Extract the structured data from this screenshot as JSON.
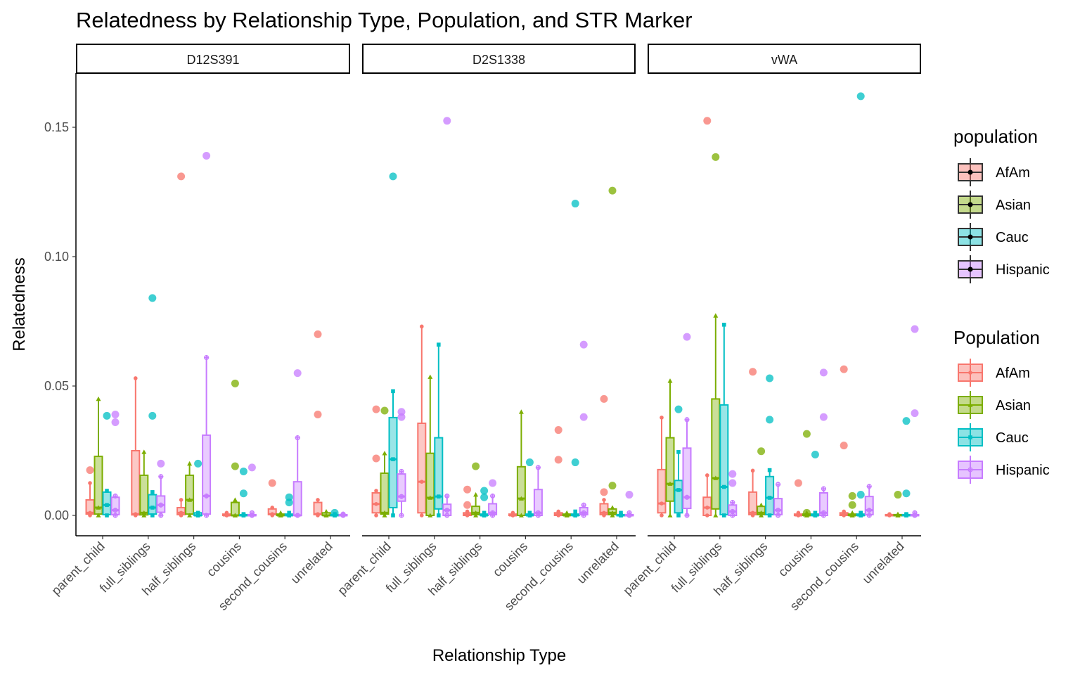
{
  "chart_data": {
    "type": "boxplot",
    "title": "Relatedness by Relationship Type, Population, and STR Marker",
    "xlabel": "Relationship Type",
    "ylabel": "Relatedness",
    "ylim": [
      -0.008,
      0.17
    ],
    "yticks": [
      0,
      0.05,
      0.1,
      0.15
    ],
    "ytick_labels": [
      "0.00",
      "0.05",
      "0.10",
      "0.15"
    ],
    "grid": false,
    "categories": [
      "parent_child",
      "full_siblings",
      "half_siblings",
      "cousins",
      "second_cousins",
      "unrelated"
    ],
    "populations": [
      "AfAm",
      "Asian",
      "Cauc",
      "Hispanic"
    ],
    "colors": {
      "AfAm": "#F8766D",
      "Asian": "#7CAE00",
      "Cauc": "#00BFC4",
      "Hispanic": "#C77CFF"
    },
    "box_stats_order": "lower_whisker, q1, median, q3, upper_whisker",
    "panels": [
      {
        "marker": "D12S391",
        "boxes": [
          [
            [
              0,
              0.0005,
              0.001,
              0.006,
              0.0125
            ],
            [
              0,
              0.0005,
              0.003,
              0.0228,
              0.045
            ],
            [
              0,
              0.0003,
              0.004,
              0.009,
              0.0095
            ],
            [
              0,
              0.0003,
              0.002,
              0.007,
              0.0075
            ]
          ],
          [
            [
              0,
              0.0002,
              0.0005,
              0.025,
              0.053
            ],
            [
              0,
              0.0002,
              0.001,
              0.0155,
              0.0245
            ],
            [
              0,
              0.0005,
              0.003,
              0.008,
              0.009
            ],
            [
              0,
              0.0012,
              0.004,
              0.0075,
              0.015
            ]
          ],
          [
            [
              0,
              0.0003,
              0.001,
              0.003,
              0.006
            ],
            [
              0,
              0.0005,
              0.006,
              0.0155,
              0.02
            ],
            [
              0,
              0,
              0,
              0.001,
              0.001
            ],
            [
              0,
              0.0005,
              0.0075,
              0.031,
              0.061
            ]
          ],
          [
            [
              0,
              0,
              0,
              0.0005,
              0.001
            ],
            [
              0,
              0,
              0,
              0.005,
              0.006
            ],
            [
              0,
              0,
              0,
              0.0003,
              0.0005
            ],
            [
              0,
              0,
              0,
              0.0003,
              0.001
            ]
          ],
          [
            [
              0,
              0.0003,
              0.0005,
              0.0025,
              0.003
            ],
            [
              0,
              0,
              0,
              0.0005,
              0.001
            ],
            [
              0,
              0,
              0,
              0.0005,
              0.001
            ],
            [
              0,
              0,
              0,
              0.013,
              0.03
            ]
          ],
          [
            [
              0,
              0.0003,
              0.0005,
              0.005,
              0.006
            ],
            [
              0,
              0,
              0,
              0.001,
              0.0015
            ],
            [
              0,
              0,
              0,
              0.0003,
              0.0005
            ],
            [
              0,
              0,
              0,
              0.0003,
              0.0005
            ]
          ]
        ],
        "outliers": [
          [
            0,
            0,
            0.0175
          ],
          [
            0,
            2,
            0.0385
          ],
          [
            0,
            3,
            0.039
          ],
          [
            0,
            3,
            0.036
          ],
          [
            1,
            2,
            0.0385
          ],
          [
            1,
            2,
            0.084
          ],
          [
            1,
            3,
            0.02
          ],
          [
            2,
            0,
            0.131
          ],
          [
            2,
            2,
            0.02
          ],
          [
            2,
            3,
            0.139
          ],
          [
            3,
            1,
            0.051
          ],
          [
            3,
            1,
            0.019
          ],
          [
            3,
            2,
            0.017
          ],
          [
            3,
            2,
            0.0085
          ],
          [
            3,
            3,
            0.0185
          ],
          [
            4,
            0,
            0.0125
          ],
          [
            4,
            2,
            0.007
          ],
          [
            4,
            2,
            0.005
          ],
          [
            4,
            3,
            0.055
          ],
          [
            5,
            0,
            0.07
          ],
          [
            5,
            0,
            0.039
          ],
          [
            5,
            2,
            0.001
          ]
        ]
      },
      {
        "marker": "D2S1338",
        "boxes": [
          [
            [
              0,
              0.001,
              0.0044,
              0.0087,
              0.0095
            ],
            [
              0,
              0.0005,
              0.001,
              0.0163,
              0.024
            ],
            [
              0,
              0.003,
              0.0217,
              0.0378,
              0.048
            ],
            [
              0,
              0.0055,
              0.0073,
              0.016,
              0.017
            ]
          ],
          [
            [
              0,
              0.001,
              0.013,
              0.0356,
              0.073
            ],
            [
              0,
              0,
              0.0068,
              0.024,
              0.0535
            ],
            [
              0,
              0.0025,
              0.0073,
              0.03,
              0.066
            ],
            [
              0,
              0,
              0.002,
              0.0043,
              0.0075
            ]
          ],
          [
            [
              0,
              0,
              0.0003,
              0.001,
              0.0015
            ],
            [
              0,
              0.0003,
              0.001,
              0.0035,
              0.008
            ],
            [
              0,
              0,
              0,
              0.0005,
              0.001
            ],
            [
              0,
              0.0003,
              0.001,
              0.0045,
              0.0075
            ]
          ],
          [
            [
              0,
              0,
              0,
              0.0005,
              0.001
            ],
            [
              0,
              0,
              0.0065,
              0.0188,
              0.04
            ],
            [
              0,
              0,
              0,
              0.0005,
              0.001
            ],
            [
              0,
              0,
              0.001,
              0.01,
              0.0185
            ]
          ],
          [
            [
              0,
              0,
              0.0003,
              0.001,
              0.0015
            ],
            [
              0,
              0,
              0,
              0.0005,
              0.001
            ],
            [
              0,
              0,
              0,
              0.0005,
              0.0015
            ],
            [
              0,
              0.0003,
              0.001,
              0.003,
              0.004
            ]
          ],
          [
            [
              0,
              0.0003,
              0.001,
              0.0045,
              0.006
            ],
            [
              0,
              0.0003,
              0.001,
              0.0025,
              0.003
            ],
            [
              0,
              0,
              0,
              0.0003,
              0.001
            ],
            [
              0,
              0,
              0,
              0.0003,
              0.001
            ]
          ]
        ],
        "outliers": [
          [
            0,
            0,
            0.041
          ],
          [
            0,
            0,
            0.022
          ],
          [
            0,
            1,
            0.0405
          ],
          [
            0,
            2,
            0.131
          ],
          [
            0,
            3,
            0.04
          ],
          [
            0,
            3,
            0.038
          ],
          [
            1,
            3,
            0.1525
          ],
          [
            2,
            0,
            0.01
          ],
          [
            2,
            0,
            0.004
          ],
          [
            2,
            1,
            0.019
          ],
          [
            2,
            2,
            0.0095
          ],
          [
            2,
            2,
            0.007
          ],
          [
            2,
            3,
            0.0125
          ],
          [
            3,
            2,
            0.0205
          ],
          [
            4,
            0,
            0.033
          ],
          [
            4,
            0,
            0.0215
          ],
          [
            4,
            2,
            0.0205
          ],
          [
            4,
            2,
            0.1205
          ],
          [
            4,
            3,
            0.066
          ],
          [
            4,
            3,
            0.038
          ],
          [
            5,
            0,
            0.045
          ],
          [
            5,
            0,
            0.009
          ],
          [
            5,
            1,
            0.0115
          ],
          [
            5,
            1,
            0.1255
          ],
          [
            5,
            3,
            0.008
          ]
        ]
      },
      {
        "marker": "vWA",
        "boxes": [
          [
            [
              0,
              0.001,
              0.0046,
              0.0177,
              0.0378
            ],
            [
              0,
              0.0055,
              0.0122,
              0.03,
              0.052
            ],
            [
              0,
              0.001,
              0.0098,
              0.0135,
              0.0245
            ],
            [
              0,
              0.0027,
              0.007,
              0.026,
              0.037
            ]
          ],
          [
            [
              0,
              0,
              0.003,
              0.007,
              0.0155
            ],
            [
              0,
              0.0025,
              0.0144,
              0.045,
              0.0772
            ],
            [
              0,
              0.0003,
              0.011,
              0.0427,
              0.0737
            ],
            [
              0,
              0,
              0.0015,
              0.004,
              0.005
            ]
          ],
          [
            [
              0,
              0.0003,
              0.001,
              0.009,
              0.0173
            ],
            [
              0,
              0.0003,
              0.001,
              0.0035,
              0.004
            ],
            [
              0,
              0.0003,
              0.0068,
              0.015,
              0.0175
            ],
            [
              0,
              0.0003,
              0.002,
              0.0065,
              0.012
            ]
          ],
          [
            [
              0,
              0,
              0,
              0.0005,
              0.001
            ],
            [
              0,
              0,
              0,
              0.0005,
              0.001
            ],
            [
              0,
              0,
              0,
              0.0005,
              0.001
            ],
            [
              0,
              0,
              0.001,
              0.0087,
              0.0103
            ]
          ],
          [
            [
              0,
              0,
              0.0003,
              0.001,
              0.0015
            ],
            [
              0,
              0,
              0,
              0.0005,
              0.001
            ],
            [
              0,
              0,
              0,
              0.0005,
              0.001
            ],
            [
              0,
              0.0003,
              0.002,
              0.0073,
              0.0112
            ]
          ],
          [
            [
              0,
              0,
              0,
              0.0003,
              0.0005
            ],
            [
              0,
              0,
              0,
              0.0003,
              0.0005
            ],
            [
              0,
              0,
              0,
              0.0003,
              0.0005
            ],
            [
              0,
              0,
              0,
              0.0003,
              0.001
            ]
          ]
        ],
        "outliers": [
          [
            0,
            2,
            0.041
          ],
          [
            0,
            3,
            0.069
          ],
          [
            1,
            0,
            0.1525
          ],
          [
            1,
            1,
            0.1385
          ],
          [
            1,
            3,
            0.016
          ],
          [
            1,
            3,
            0.0125
          ],
          [
            2,
            0,
            0.0555
          ],
          [
            2,
            1,
            0.0248
          ],
          [
            2,
            2,
            0.053
          ],
          [
            2,
            2,
            0.037
          ],
          [
            3,
            0,
            0.0125
          ],
          [
            3,
            1,
            0.0315
          ],
          [
            3,
            1,
            0.001
          ],
          [
            3,
            2,
            0.0235
          ],
          [
            3,
            3,
            0.0552
          ],
          [
            3,
            3,
            0.038
          ],
          [
            4,
            0,
            0.0565
          ],
          [
            4,
            0,
            0.027
          ],
          [
            4,
            1,
            0.0075
          ],
          [
            4,
            1,
            0.004
          ],
          [
            4,
            2,
            0.008
          ],
          [
            4,
            2,
            0.162
          ],
          [
            5,
            1,
            0.008
          ],
          [
            5,
            2,
            0.0085
          ],
          [
            5,
            2,
            0.0365
          ],
          [
            5,
            3,
            0.072
          ],
          [
            5,
            3,
            0.0395
          ]
        ]
      }
    ],
    "legends": [
      {
        "title": "population",
        "type": "fill",
        "labels": [
          "AfAm",
          "Asian",
          "Cauc",
          "Hispanic"
        ]
      },
      {
        "title": "Population",
        "type": "colour-shape",
        "labels": [
          "AfAm",
          "Asian",
          "Cauc",
          "Hispanic"
        ]
      }
    ],
    "legend_placement": "right"
  }
}
